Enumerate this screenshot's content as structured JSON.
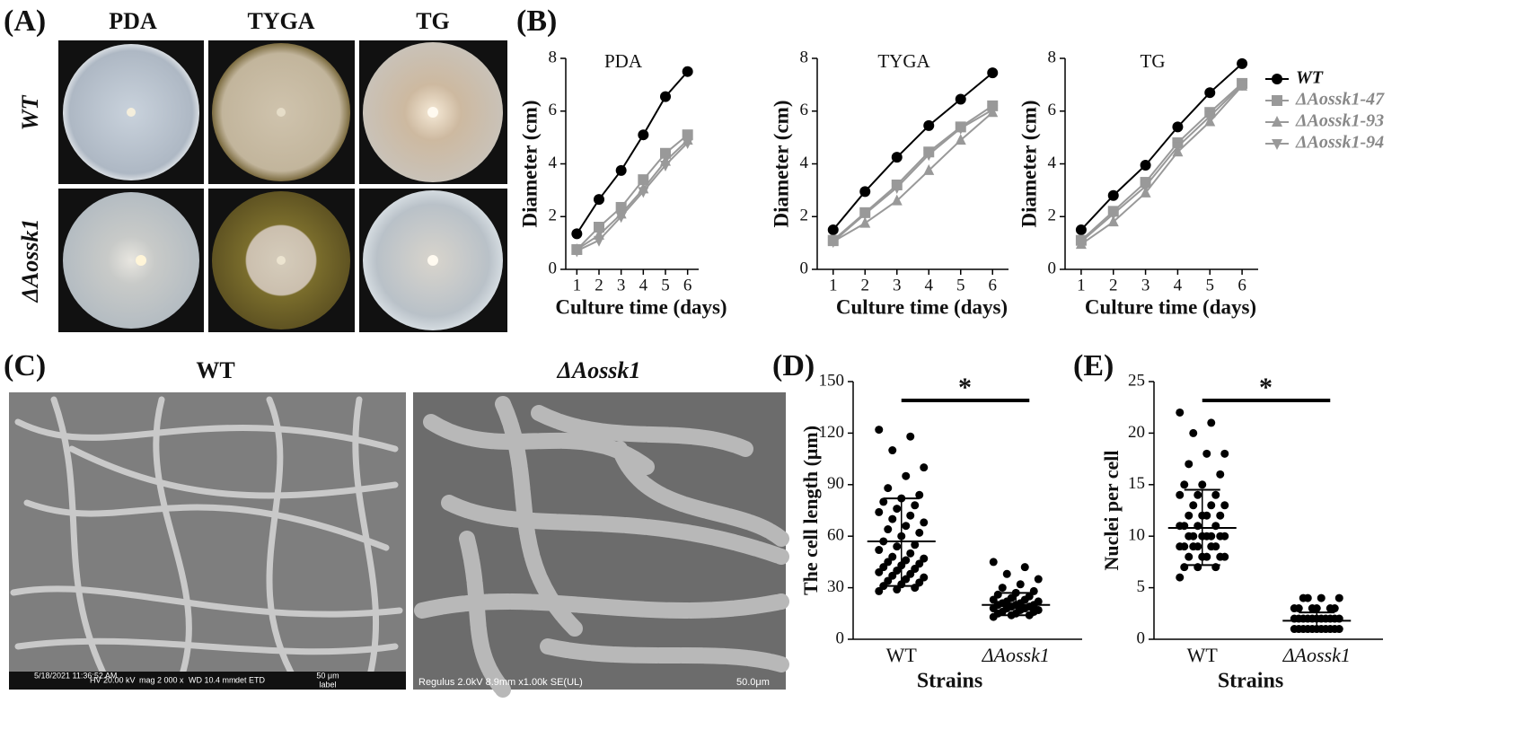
{
  "figure_panels": {
    "A": {
      "label": "(A)",
      "columns": [
        "PDA",
        "TYGA",
        "TG"
      ],
      "rows": [
        "WT",
        "ΔAossk1"
      ]
    },
    "C": {
      "label": "(C)",
      "titles": [
        "WT",
        "ΔAossk1"
      ],
      "info": [
        "5/18/2021 11:36:52 AM",
        "HV 20.00 kV",
        "mag 2 000 x",
        "WD 10.4 mm",
        "det ETD",
        "50 μm",
        "label",
        "Regulus 2.0kV 8.9mm x1.00k SE(UL)",
        "50.0μm"
      ]
    }
  },
  "chart_data": [
    {
      "type": "line",
      "panel_label": "(B)",
      "title": "PDA",
      "xlabel": "Culture time (days)",
      "ylabel": "Diameter (cm)",
      "x": [
        1,
        2,
        3,
        4,
        5,
        6
      ],
      "xlim": [
        0.5,
        6.5
      ],
      "xticks": [
        1,
        2,
        3,
        4,
        5,
        6
      ],
      "ylim": [
        0,
        8
      ],
      "yticks": [
        0,
        2,
        4,
        6,
        8
      ],
      "series": [
        {
          "color": "#000000",
          "marker": "circle",
          "values": [
            1.35,
            2.65,
            3.75,
            5.1,
            6.55,
            7.5
          ]
        },
        {
          "color": "#999999",
          "marker": "square",
          "values": [
            0.75,
            1.6,
            2.35,
            3.4,
            4.4,
            5.1
          ]
        },
        {
          "color": "#999999",
          "marker": "triangle-up",
          "values": [
            0.75,
            1.3,
            2.1,
            3.05,
            4.1,
            4.9
          ]
        },
        {
          "color": "#999999",
          "marker": "triangle-down",
          "values": [
            0.7,
            1.1,
            2.0,
            2.95,
            3.95,
            4.8
          ]
        }
      ]
    },
    {
      "type": "line",
      "title": "TYGA",
      "xlabel": "Culture time (days)",
      "ylabel": "Diameter (cm)",
      "x": [
        1,
        2,
        3,
        4,
        5,
        6
      ],
      "xlim": [
        0.5,
        6.5
      ],
      "xticks": [
        1,
        2,
        3,
        4,
        5,
        6
      ],
      "ylim": [
        0,
        8
      ],
      "yticks": [
        0,
        2,
        4,
        6,
        8
      ],
      "series": [
        {
          "color": "#000000",
          "marker": "circle",
          "values": [
            1.5,
            2.95,
            4.25,
            5.45,
            6.45,
            7.45
          ]
        },
        {
          "color": "#999999",
          "marker": "square",
          "values": [
            1.1,
            2.15,
            3.2,
            4.45,
            5.4,
            6.2
          ]
        },
        {
          "color": "#999999",
          "marker": "triangle-up",
          "values": [
            1.05,
            1.75,
            2.6,
            3.75,
            4.9,
            5.95
          ]
        },
        {
          "color": "#999999",
          "marker": "triangle-down",
          "values": [
            1.05,
            2.1,
            3.1,
            4.35,
            5.35,
            6.05
          ]
        }
      ]
    },
    {
      "type": "line",
      "title": "TG",
      "xlabel": "Culture time (days)",
      "ylabel": "Diameter (cm)",
      "x": [
        1,
        2,
        3,
        4,
        5,
        6
      ],
      "xlim": [
        0.5,
        6.5
      ],
      "xticks": [
        1,
        2,
        3,
        4,
        5,
        6
      ],
      "ylim": [
        0,
        8
      ],
      "yticks": [
        0,
        2,
        4,
        6,
        8
      ],
      "legend": "right",
      "series": [
        {
          "name": "WT",
          "color": "#000000",
          "marker": "circle",
          "values": [
            1.5,
            2.8,
            3.95,
            5.4,
            6.7,
            7.8
          ]
        },
        {
          "name": "ΔAossk1-47",
          "color": "#999999",
          "marker": "square",
          "values": [
            1.1,
            2.2,
            3.3,
            4.8,
            5.95,
            7.05
          ]
        },
        {
          "name": "ΔAossk1-93",
          "color": "#999999",
          "marker": "triangle-up",
          "values": [
            0.95,
            1.8,
            2.9,
            4.45,
            5.6,
            6.95
          ]
        },
        {
          "name": "ΔAossk1-94",
          "color": "#999999",
          "marker": "triangle-down",
          "values": [
            1.05,
            2.1,
            3.15,
            4.65,
            5.8,
            7.0
          ]
        }
      ]
    },
    {
      "type": "strip",
      "panel_label": "(D)",
      "ylabel": "The cell length (μm)",
      "xlabel": "Strains",
      "annotation": "*",
      "categories": [
        "WT",
        "ΔAossk1"
      ],
      "ylim": [
        0,
        150
      ],
      "yticks": [
        0,
        30,
        60,
        90,
        120,
        150
      ],
      "color": "#000000",
      "groups": [
        {
          "values": [
            28,
            29,
            30,
            31,
            32,
            33,
            34,
            35,
            36,
            37,
            38,
            39,
            40,
            41,
            42,
            43,
            44,
            45,
            46,
            47,
            48,
            50,
            52,
            54,
            55,
            57,
            60,
            62,
            64,
            66,
            68,
            70,
            72,
            74,
            76,
            78,
            80,
            82,
            84,
            88,
            95,
            100,
            110,
            118,
            122
          ],
          "mean": 57,
          "sd_low": 31,
          "sd_high": 82
        },
        {
          "values": [
            13,
            14,
            14,
            15,
            15,
            16,
            16,
            17,
            17,
            18,
            18,
            18,
            19,
            19,
            20,
            20,
            20,
            21,
            21,
            22,
            22,
            23,
            23,
            24,
            25,
            26,
            27,
            28,
            30,
            32,
            35,
            38,
            42,
            45
          ],
          "mean": 20,
          "sd_low": 14,
          "sd_high": 27
        }
      ]
    },
    {
      "type": "strip",
      "panel_label": "(E)",
      "ylabel": "Nuclei per cell",
      "xlabel": "Strains",
      "annotation": "*",
      "categories": [
        "WT",
        "ΔAossk1"
      ],
      "ylim": [
        0,
        25
      ],
      "yticks": [
        0,
        5,
        10,
        15,
        20,
        25
      ],
      "color": "#000000",
      "groups": [
        {
          "values": [
            6,
            7,
            7,
            7,
            8,
            8,
            8,
            8,
            8,
            9,
            9,
            9,
            9,
            9,
            9,
            10,
            10,
            10,
            10,
            10,
            10,
            10,
            11,
            11,
            11,
            11,
            12,
            12,
            12,
            12,
            13,
            13,
            13,
            14,
            14,
            14,
            15,
            15,
            16,
            17,
            18,
            18,
            20,
            21,
            22
          ],
          "mean": 10.8,
          "sd_low": 7.2,
          "sd_high": 14.5
        },
        {
          "values": [
            1,
            1,
            1,
            1,
            1,
            1,
            1,
            1,
            1,
            1,
            1,
            2,
            2,
            2,
            2,
            2,
            2,
            2,
            2,
            2,
            2,
            2,
            3,
            3,
            3,
            3,
            3,
            3,
            4,
            4,
            4,
            4
          ],
          "mean": 1.8,
          "sd_low": 1.1,
          "sd_high": 2.6
        }
      ]
    }
  ]
}
